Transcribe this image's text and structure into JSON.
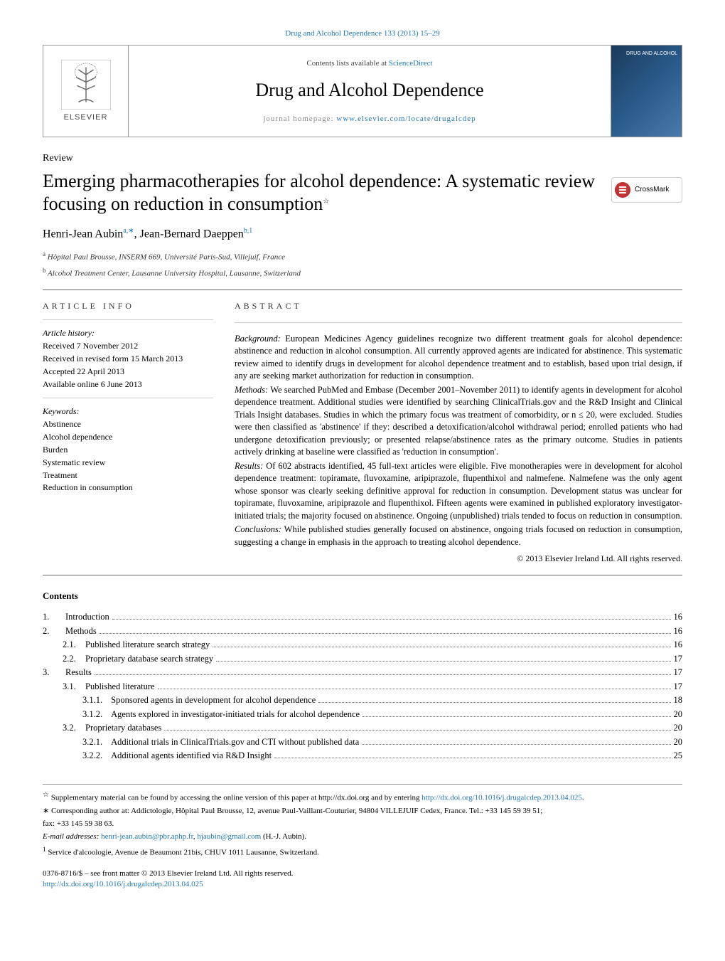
{
  "top_link": "Drug and Alcohol Dependence 133 (2013) 15–29",
  "header": {
    "contents_prefix": "Contents lists available at ",
    "contents_link": "ScienceDirect",
    "journal_title": "Drug and Alcohol Dependence",
    "homepage_prefix": "journal homepage: ",
    "homepage_link": "www.elsevier.com/locate/drugalcdep",
    "elsevier_label": "ELSEVIER",
    "cover_text": "DRUG AND ALCOHOL"
  },
  "crossmark_label": "CrossMark",
  "review_label": "Review",
  "title": "Emerging pharmacotherapies for alcohol dependence: A systematic review focusing on reduction in consumption",
  "title_star": "☆",
  "authors_line": "Henri-Jean Aubin",
  "author1_refs": "a,∗",
  "authors_sep": ", Jean-Bernard Daeppen",
  "author2_refs": "b,1",
  "affiliations": [
    {
      "sup": "a",
      "text": " Hôpital Paul Brousse, INSERM 669, Université Paris-Sud, Villejuif, France"
    },
    {
      "sup": "b",
      "text": " Alcohol Treatment Center, Lausanne University Hospital, Lausanne, Switzerland"
    }
  ],
  "info_header": "article info",
  "abstract_header": "abstract",
  "history": {
    "label": "Article history:",
    "items": [
      "Received 7 November 2012",
      "Received in revised form 15 March 2013",
      "Accepted 22 April 2013",
      "Available online 6 June 2013"
    ]
  },
  "keywords": {
    "label": "Keywords:",
    "items": [
      "Abstinence",
      "Alcohol dependence",
      "Burden",
      "Systematic review",
      "Treatment",
      "Reduction in consumption"
    ]
  },
  "abstract": {
    "background_label": "Background:",
    "background": " European Medicines Agency guidelines recognize two different treatment goals for alcohol dependence: abstinence and reduction in alcohol consumption. All currently approved agents are indicated for abstinence. This systematic review aimed to identify drugs in development for alcohol dependence treatment and to establish, based upon trial design, if any are seeking market authorization for reduction in consumption.",
    "methods_label": "Methods:",
    "methods": " We searched PubMed and Embase (December 2001–November 2011) to identify agents in development for alcohol dependence treatment. Additional studies were identified by searching ClinicalTrials.gov and the R&D Insight and Clinical Trials Insight databases. Studies in which the primary focus was treatment of comorbidity, or n ≤ 20, were excluded. Studies were then classified as 'abstinence' if they: described a detoxification/alcohol withdrawal period; enrolled patients who had undergone detoxification previously; or presented relapse/abstinence rates as the primary outcome. Studies in patients actively drinking at baseline were classified as 'reduction in consumption'.",
    "results_label": "Results:",
    "results": " Of 602 abstracts identified, 45 full-text articles were eligible. Five monotherapies were in development for alcohol dependence treatment: topiramate, fluvoxamine, aripiprazole, flupenthixol and nalmefene. Nalmefene was the only agent whose sponsor was clearly seeking definitive approval for reduction in consumption. Development status was unclear for topiramate, fluvoxamine, aripiprazole and flupenthixol. Fifteen agents were examined in published exploratory investigator-initiated trials; the majority focused on abstinence. Ongoing (unpublished) trials tended to focus on reduction in consumption.",
    "conclusions_label": "Conclusions:",
    "conclusions": " While published studies generally focused on abstinence, ongoing trials focused on reduction in consumption, suggesting a change in emphasis in the approach to treating alcohol dependence.",
    "copyright": "© 2013 Elsevier Ireland Ltd. All rights reserved."
  },
  "contents_label": "Contents",
  "toc": [
    {
      "num": "1.",
      "text": "Introduction",
      "page": "16",
      "indent": 0
    },
    {
      "num": "2.",
      "text": "Methods",
      "page": "16",
      "indent": 0
    },
    {
      "num": "2.1.",
      "text": "Published literature search strategy",
      "page": "16",
      "indent": 1
    },
    {
      "num": "2.2.",
      "text": "Proprietary database search strategy",
      "page": "17",
      "indent": 1
    },
    {
      "num": "3.",
      "text": "Results",
      "page": "17",
      "indent": 0
    },
    {
      "num": "3.1.",
      "text": "Published literature",
      "page": "17",
      "indent": 1
    },
    {
      "num": "3.1.1.",
      "text": "Sponsored agents in development for alcohol dependence",
      "page": "18",
      "indent": 2
    },
    {
      "num": "3.1.2.",
      "text": "Agents explored in investigator-initiated trials for alcohol dependence",
      "page": "20",
      "indent": 2
    },
    {
      "num": "3.2.",
      "text": "Proprietary databases",
      "page": "20",
      "indent": 1
    },
    {
      "num": "3.2.1.",
      "text": "Additional trials in ClinicalTrials.gov and CTI without published data",
      "page": "20",
      "indent": 2
    },
    {
      "num": "3.2.2.",
      "text": "Additional agents identified via R&D Insight",
      "page": "25",
      "indent": 2
    }
  ],
  "footnotes": {
    "supp_star": "☆",
    "supp_text": " Supplementary material can be found by accessing the online version of this paper at http://dx.doi.org and by entering ",
    "supp_link": "http://dx.doi.org/10.1016/j.drugalcdep.2013.04.025",
    "supp_period": ".",
    "corr_star": "∗",
    "corr_text": " Corresponding author at: Addictologie, Hôpital Paul Brousse, 12, avenue Paul-Vaillant-Couturier, 94804 VILLEJUIF Cedex, France. Tel.: +33 145 59 39 51;",
    "fax": "fax: +33 145 59 38 63.",
    "email_label": "E-mail addresses: ",
    "email1": "henri-jean.aubin@pbr.aphp.fr",
    "email_sep": ", ",
    "email2": "hjaubin@gmail.com",
    "email_suffix": " (H.-J. Aubin).",
    "service_sup": "1",
    "service": " Service d'alcoologie, Avenue de Beaumont 21bis, CHUV 1011 Lausanne, Switzerland."
  },
  "footer": {
    "issn": "0376-8716/$ – see front matter © 2013 Elsevier Ireland Ltd. All rights reserved.",
    "doi": "http://dx.doi.org/10.1016/j.drugalcdep.2013.04.025"
  },
  "colors": {
    "link": "#2078b4",
    "border": "#999999",
    "text": "#000000"
  }
}
